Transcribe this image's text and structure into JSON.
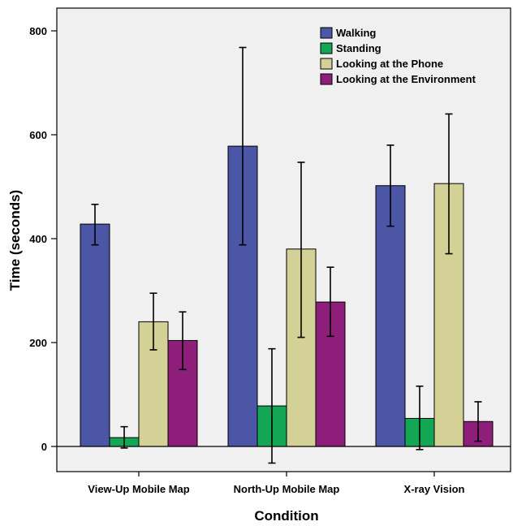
{
  "chart_data": {
    "type": "bar",
    "xlabel": "Condition",
    "ylabel": "Time (seconds)",
    "categories": [
      "View-Up Mobile Map",
      "North-Up Mobile Map",
      "X-ray Vision"
    ],
    "yticks": [
      0,
      200,
      400,
      600,
      800
    ],
    "ylim": [
      -50,
      850
    ],
    "grid": false,
    "error_bars": true,
    "legend_position": "top-right",
    "series": [
      {
        "name": "Walking",
        "color": "#4b56a6",
        "values": [
          428,
          578,
          502
        ],
        "err_low": [
          388,
          388,
          424
        ],
        "err_high": [
          466,
          768,
          580
        ]
      },
      {
        "name": "Standing",
        "color": "#13a654",
        "values": [
          17,
          78,
          54
        ],
        "err_low": [
          -3,
          -32,
          -6
        ],
        "err_high": [
          38,
          188,
          116
        ]
      },
      {
        "name": "Looking at the Phone",
        "color": "#d4d197",
        "values": [
          240,
          380,
          506
        ],
        "err_low": [
          186,
          210,
          371
        ],
        "err_high": [
          295,
          547,
          640
        ]
      },
      {
        "name": "Looking at the Environment",
        "color": "#8d1e7a",
        "values": [
          204,
          278,
          48
        ],
        "err_low": [
          148,
          212,
          10
        ],
        "err_high": [
          259,
          345,
          86
        ]
      }
    ]
  }
}
